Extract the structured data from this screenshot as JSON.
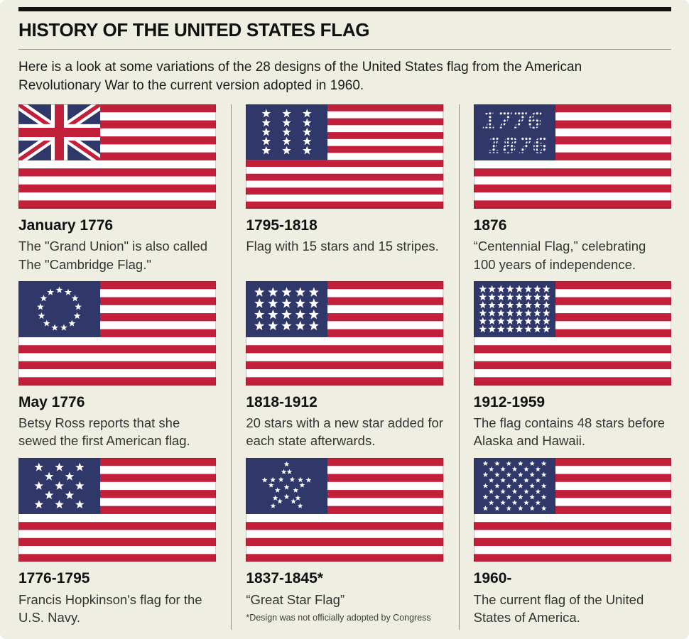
{
  "page": {
    "title": "HISTORY OF THE UNITED STATES FLAG",
    "intro": "Here is a look at some variations of the 28 designs of the United States flag from the American Revolutionary War to the current version adopted in 1960."
  },
  "colors": {
    "red": "#c11f3a",
    "navy": "#30386a",
    "background": "#efeee2"
  },
  "cells": [
    {
      "date": "January 1776",
      "desc": "The \"Grand Union\" is also called The \"Cambridge Flag.\"",
      "flag": {
        "type": "union-jack",
        "stripes": 13
      }
    },
    {
      "date": "1795-1818",
      "desc": "Flag with 15 stars and 15 stripes.",
      "flag": {
        "type": "rows",
        "stripes": 15,
        "stars": 15,
        "rows": [
          3,
          3,
          3,
          3,
          3
        ]
      }
    },
    {
      "date": "1876",
      "desc": "“Centennial Flag,” celebrating 100 years of independence.",
      "flag": {
        "type": "text-stars",
        "stripes": 13,
        "lines": [
          "1776",
          "1876"
        ]
      }
    },
    {
      "date": "May 1776",
      "desc": "Betsy Ross reports that she sewed the first American flag.",
      "flag": {
        "type": "circle",
        "stripes": 13,
        "stars": 13
      }
    },
    {
      "date": "1818-1912",
      "desc": "20 stars with a new star added for each state afterwards.",
      "flag": {
        "type": "rows",
        "stripes": 13,
        "stars": 20,
        "rows": [
          5,
          5,
          5,
          5
        ]
      }
    },
    {
      "date": "1912-1959",
      "desc": "The flag contains 48 stars before Alaska and Hawaii.",
      "flag": {
        "type": "rows",
        "stripes": 13,
        "stars": 48,
        "rows": [
          8,
          8,
          8,
          8,
          8,
          8
        ]
      }
    },
    {
      "date": "1776-1795",
      "desc": "Francis Hopkinson's flag for the U.S. Navy.",
      "flag": {
        "type": "rows",
        "stripes": 13,
        "stars": 13,
        "rows": [
          3,
          2,
          3,
          2,
          3
        ]
      }
    },
    {
      "date": "1837-1845*",
      "desc": "“Great Star Flag”",
      "footnote": "*Design was not officially adopted by Congress",
      "flag": {
        "type": "great-star",
        "stripes": 13
      }
    },
    {
      "date": "1960-",
      "desc": "The current flag of the United States of America.",
      "flag": {
        "type": "rows",
        "stripes": 13,
        "stars": 50,
        "rows": [
          6,
          5,
          6,
          5,
          6,
          5,
          6,
          5,
          6
        ]
      }
    }
  ]
}
